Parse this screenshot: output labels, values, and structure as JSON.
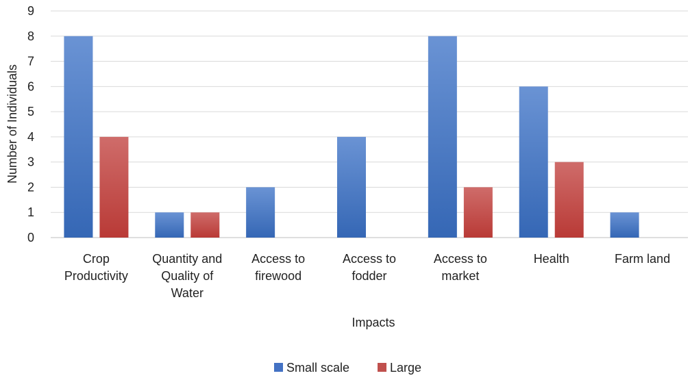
{
  "chart_data": {
    "type": "bar",
    "categories": [
      [
        "Crop",
        "Productivity"
      ],
      [
        "Quantity and",
        "Quality of",
        "Water"
      ],
      [
        "Access to",
        "firewood"
      ],
      [
        "Access to",
        "fodder"
      ],
      [
        "Access to",
        "market"
      ],
      [
        "Health"
      ],
      [
        "Farm land"
      ]
    ],
    "series": [
      {
        "name": "Small scale",
        "values": [
          8,
          1,
          2,
          4,
          8,
          6,
          1
        ],
        "color": "#4472c4"
      },
      {
        "name": "Large",
        "values": [
          4,
          1,
          0,
          0,
          2,
          3,
          0
        ],
        "color": "#c0504d"
      }
    ],
    "xlabel": "Impacts",
    "ylabel": "Number of Individuals",
    "ylim": [
      0,
      9
    ],
    "yticks": [
      0,
      1,
      2,
      3,
      4,
      5,
      6,
      7,
      8,
      9
    ],
    "grid": true,
    "legend": "bottom"
  }
}
